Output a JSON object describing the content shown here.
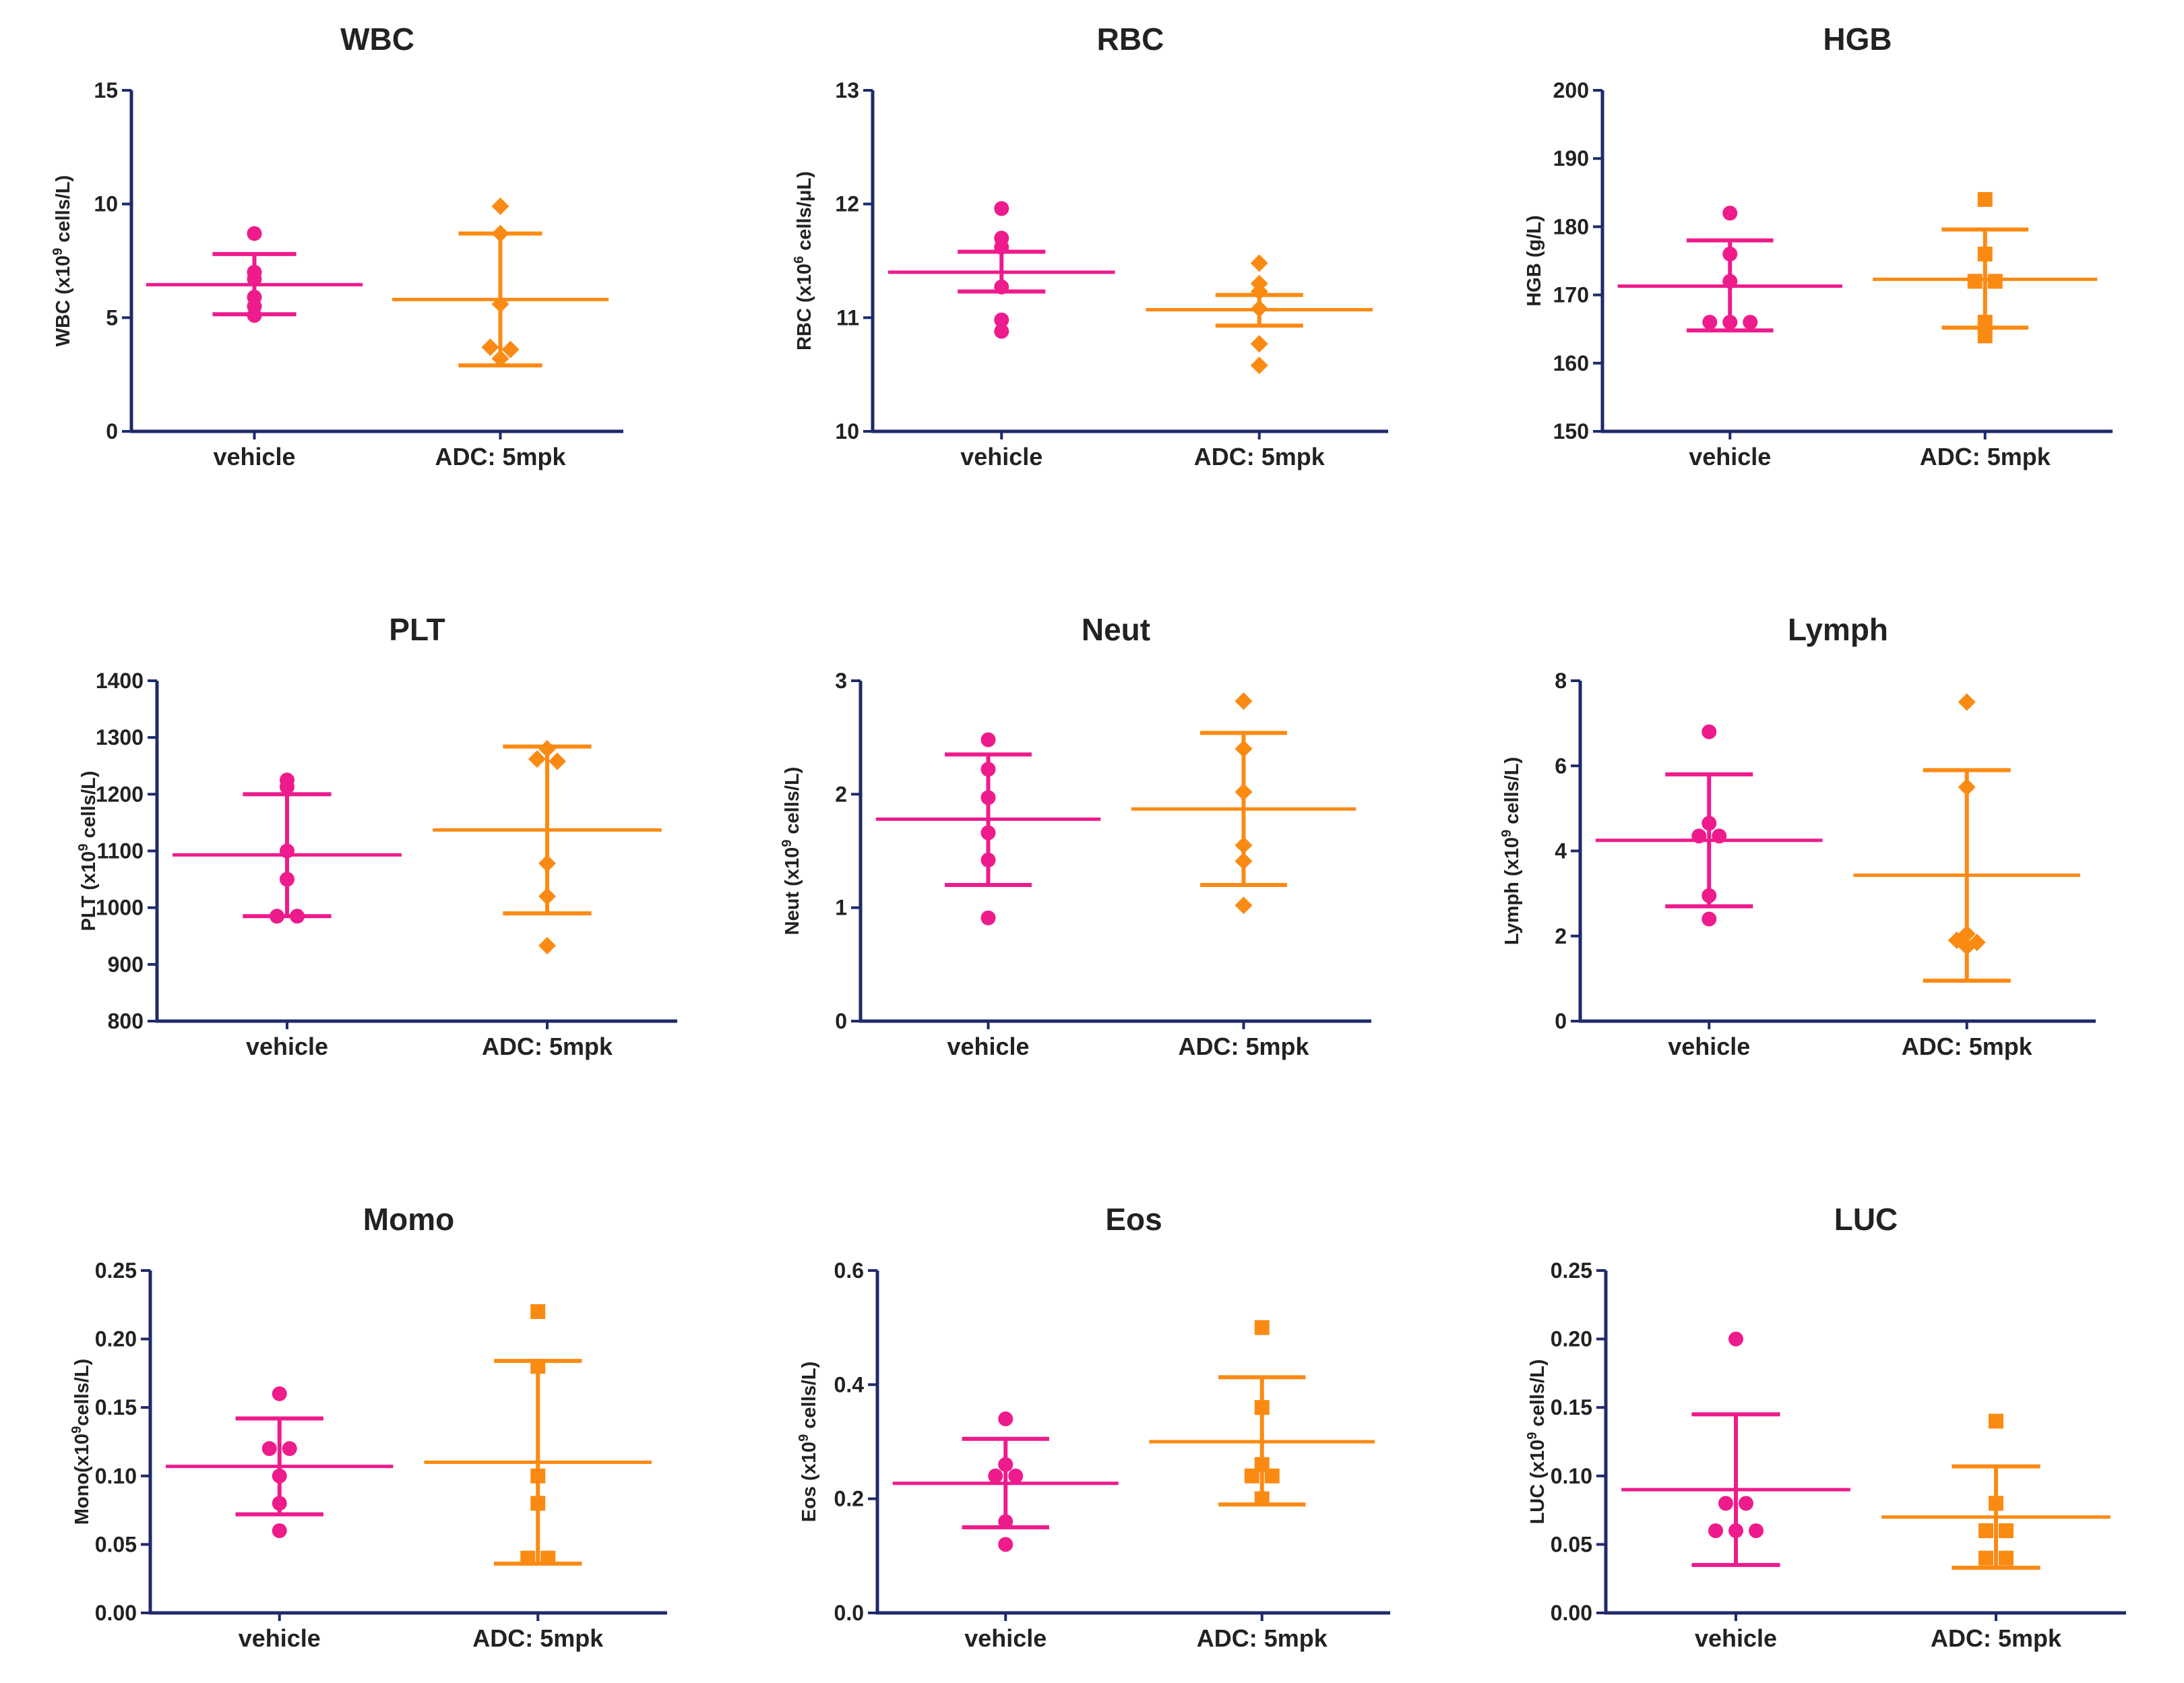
{
  "chart_data": [
    {
      "type": "scatter",
      "title": "WBC",
      "ylabel": "WBC (x10<sup>9</sup> cells/L)",
      "ylim": [
        0,
        15
      ],
      "yticks": [
        0,
        5,
        10,
        15
      ],
      "ytick_labels": [
        "0",
        "5",
        "10",
        "15"
      ],
      "categories": [
        "vehicle",
        "ADC: 5mpk"
      ],
      "series": [
        {
          "name": "vehicle",
          "color": "#ee1b8c",
          "marker": "circle",
          "values": [
            8.7,
            7.0,
            6.7,
            5.9,
            5.5,
            5.1
          ],
          "mean": 6.45,
          "sd_low": 5.15,
          "sd_high": 7.8
        },
        {
          "name": "ADC: 5mpk",
          "color": "#fb8a13",
          "marker": "diamond",
          "values": [
            9.9,
            8.7,
            5.6,
            3.7,
            3.6,
            3.2
          ],
          "mean": 5.8,
          "sd_low": 2.9,
          "sd_high": 8.7
        }
      ]
    },
    {
      "type": "scatter",
      "title": "RBC",
      "ylabel": "RBC (x10<sup>6</sup> cells/μL)",
      "ylim": [
        10,
        13
      ],
      "yticks": [
        10,
        11,
        12,
        13
      ],
      "ytick_labels": [
        "10",
        "11",
        "12",
        "13"
      ],
      "categories": [
        "vehicle",
        "ADC: 5mpk"
      ],
      "series": [
        {
          "name": "vehicle",
          "color": "#ee1b8c",
          "marker": "circle",
          "values": [
            11.96,
            11.7,
            11.62,
            11.27,
            10.98,
            10.88
          ],
          "mean": 11.4,
          "sd_low": 11.23,
          "sd_high": 11.58
        },
        {
          "name": "ADC: 5mpk",
          "color": "#fb8a13",
          "marker": "diamond",
          "values": [
            11.48,
            11.3,
            11.23,
            11.08,
            10.77,
            10.58
          ],
          "mean": 11.07,
          "sd_low": 10.93,
          "sd_high": 11.2
        }
      ]
    },
    {
      "type": "scatter",
      "title": "HGB",
      "ylabel": "HGB (g/L)",
      "ylim": [
        150,
        200
      ],
      "yticks": [
        150,
        160,
        170,
        180,
        190,
        200
      ],
      "ytick_labels": [
        "150",
        "160",
        "170",
        "180",
        "190",
        "200"
      ],
      "categories": [
        "vehicle",
        "ADC: 5mpk"
      ],
      "series": [
        {
          "name": "vehicle",
          "color": "#ee1b8c",
          "marker": "circle",
          "values": [
            182,
            176,
            172,
            166,
            166,
            166
          ],
          "mean": 171.3,
          "sd_low": 164.8,
          "sd_high": 178
        },
        {
          "name": "ADC: 5mpk",
          "color": "#fb8a13",
          "marker": "square",
          "values": [
            184,
            176,
            172,
            172,
            166,
            164
          ],
          "mean": 172.3,
          "sd_low": 165.2,
          "sd_high": 179.6
        }
      ]
    },
    {
      "type": "scatter",
      "title": "PLT",
      "ylabel": "PLT (x10<sup>9</sup> cells/L)",
      "ylim": [
        800,
        1400
      ],
      "yticks": [
        800,
        900,
        1000,
        1100,
        1200,
        1300,
        1400
      ],
      "ytick_labels": [
        "800",
        "900",
        "1000",
        "1100",
        "1200",
        "1300",
        "1400"
      ],
      "categories": [
        "vehicle",
        "ADC: 5mpk"
      ],
      "series": [
        {
          "name": "vehicle",
          "color": "#ee1b8c",
          "marker": "circle",
          "values": [
            1225,
            1213,
            1100,
            1050,
            985,
            985
          ],
          "mean": 1093,
          "sd_low": 985,
          "sd_high": 1200
        },
        {
          "name": "ADC: 5mpk",
          "color": "#fb8a13",
          "marker": "diamond",
          "values": [
            1280,
            1262,
            1258,
            1078,
            1020,
            933
          ],
          "mean": 1137,
          "sd_low": 990,
          "sd_high": 1284
        }
      ]
    },
    {
      "type": "scatter",
      "title": "Neut",
      "ylabel": "Neut (x10<sup>9</sup> cells/L)",
      "ylim": [
        0,
        3
      ],
      "yticks": [
        0,
        1,
        2,
        3
      ],
      "ytick_labels": [
        "0",
        "1",
        "2",
        "3"
      ],
      "categories": [
        "vehicle",
        "ADC: 5mpk"
      ],
      "series": [
        {
          "name": "vehicle",
          "color": "#ee1b8c",
          "marker": "circle",
          "values": [
            2.48,
            2.22,
            1.97,
            1.66,
            1.42,
            0.91
          ],
          "mean": 1.78,
          "sd_low": 1.2,
          "sd_high": 2.35
        },
        {
          "name": "ADC: 5mpk",
          "color": "#fb8a13",
          "marker": "diamond",
          "values": [
            2.82,
            2.4,
            2.02,
            1.55,
            1.41,
            1.02
          ],
          "mean": 1.87,
          "sd_low": 1.2,
          "sd_high": 2.54
        }
      ]
    },
    {
      "type": "scatter",
      "title": "Lymph",
      "ylabel": "Lymph (x10<sup>9</sup> cells/L)",
      "ylim": [
        0,
        8
      ],
      "yticks": [
        0,
        2,
        4,
        6,
        8
      ],
      "ytick_labels": [
        "0",
        "2",
        "4",
        "6",
        "8"
      ],
      "categories": [
        "vehicle",
        "ADC: 5mpk"
      ],
      "series": [
        {
          "name": "vehicle",
          "color": "#ee1b8c",
          "marker": "circle",
          "values": [
            6.8,
            4.65,
            4.35,
            4.35,
            2.95,
            2.4
          ],
          "mean": 4.25,
          "sd_low": 2.7,
          "sd_high": 5.8
        },
        {
          "name": "ADC: 5mpk",
          "color": "#fb8a13",
          "marker": "diamond",
          "values": [
            7.5,
            5.5,
            2.05,
            1.9,
            1.85,
            1.75
          ],
          "mean": 3.43,
          "sd_low": 0.95,
          "sd_high": 5.9
        }
      ]
    },
    {
      "type": "scatter",
      "title": "Momo",
      "ylabel": "Mono(x10<sup>9</sup>cells/L)",
      "ylim": [
        0,
        0.25
      ],
      "yticks": [
        0,
        0.05,
        0.1,
        0.15,
        0.2,
        0.25
      ],
      "ytick_labels": [
        "0.00",
        "0.05",
        "0.10",
        "0.15",
        "0.20",
        "0.25"
      ],
      "categories": [
        "vehicle",
        "ADC: 5mpk"
      ],
      "series": [
        {
          "name": "vehicle",
          "color": "#ee1b8c",
          "marker": "circle",
          "values": [
            0.16,
            0.12,
            0.12,
            0.1,
            0.08,
            0.06
          ],
          "mean": 0.107,
          "sd_low": 0.072,
          "sd_high": 0.142
        },
        {
          "name": "ADC: 5mpk",
          "color": "#fb8a13",
          "marker": "square",
          "values": [
            0.22,
            0.18,
            0.1,
            0.08,
            0.04,
            0.04
          ],
          "mean": 0.11,
          "sd_low": 0.036,
          "sd_high": 0.184
        }
      ]
    },
    {
      "type": "scatter",
      "title": "Eos",
      "ylabel": "Eos (x10<sup>9</sup> cells/L)",
      "ylim": [
        0,
        0.6
      ],
      "yticks": [
        0,
        0.2,
        0.4,
        0.6
      ],
      "ytick_labels": [
        "0.0",
        "0.2",
        "0.4",
        "0.6"
      ],
      "categories": [
        "vehicle",
        "ADC: 5mpk"
      ],
      "series": [
        {
          "name": "vehicle",
          "color": "#ee1b8c",
          "marker": "circle",
          "values": [
            0.34,
            0.26,
            0.24,
            0.24,
            0.16,
            0.12
          ],
          "mean": 0.227,
          "sd_low": 0.15,
          "sd_high": 0.305
        },
        {
          "name": "ADC: 5mpk",
          "color": "#fb8a13",
          "marker": "square",
          "values": [
            0.5,
            0.36,
            0.26,
            0.24,
            0.24,
            0.2
          ],
          "mean": 0.3,
          "sd_low": 0.19,
          "sd_high": 0.413
        }
      ]
    },
    {
      "type": "scatter",
      "title": "LUC",
      "ylabel": "LUC (x10<sup>9</sup> cells/L)",
      "ylim": [
        0,
        0.25
      ],
      "yticks": [
        0,
        0.05,
        0.1,
        0.15,
        0.2,
        0.25
      ],
      "ytick_labels": [
        "0.00",
        "0.05",
        "0.10",
        "0.15",
        "0.20",
        "0.25"
      ],
      "categories": [
        "vehicle",
        "ADC: 5mpk"
      ],
      "series": [
        {
          "name": "vehicle",
          "color": "#ee1b8c",
          "marker": "circle",
          "values": [
            0.2,
            0.08,
            0.08,
            0.06,
            0.06,
            0.06
          ],
          "mean": 0.09,
          "sd_low": 0.035,
          "sd_high": 0.145
        },
        {
          "name": "ADC: 5mpk",
          "color": "#fb8a13",
          "marker": "square",
          "values": [
            0.14,
            0.08,
            0.06,
            0.06,
            0.04,
            0.04
          ],
          "mean": 0.07,
          "sd_low": 0.033,
          "sd_high": 0.107
        }
      ]
    }
  ]
}
